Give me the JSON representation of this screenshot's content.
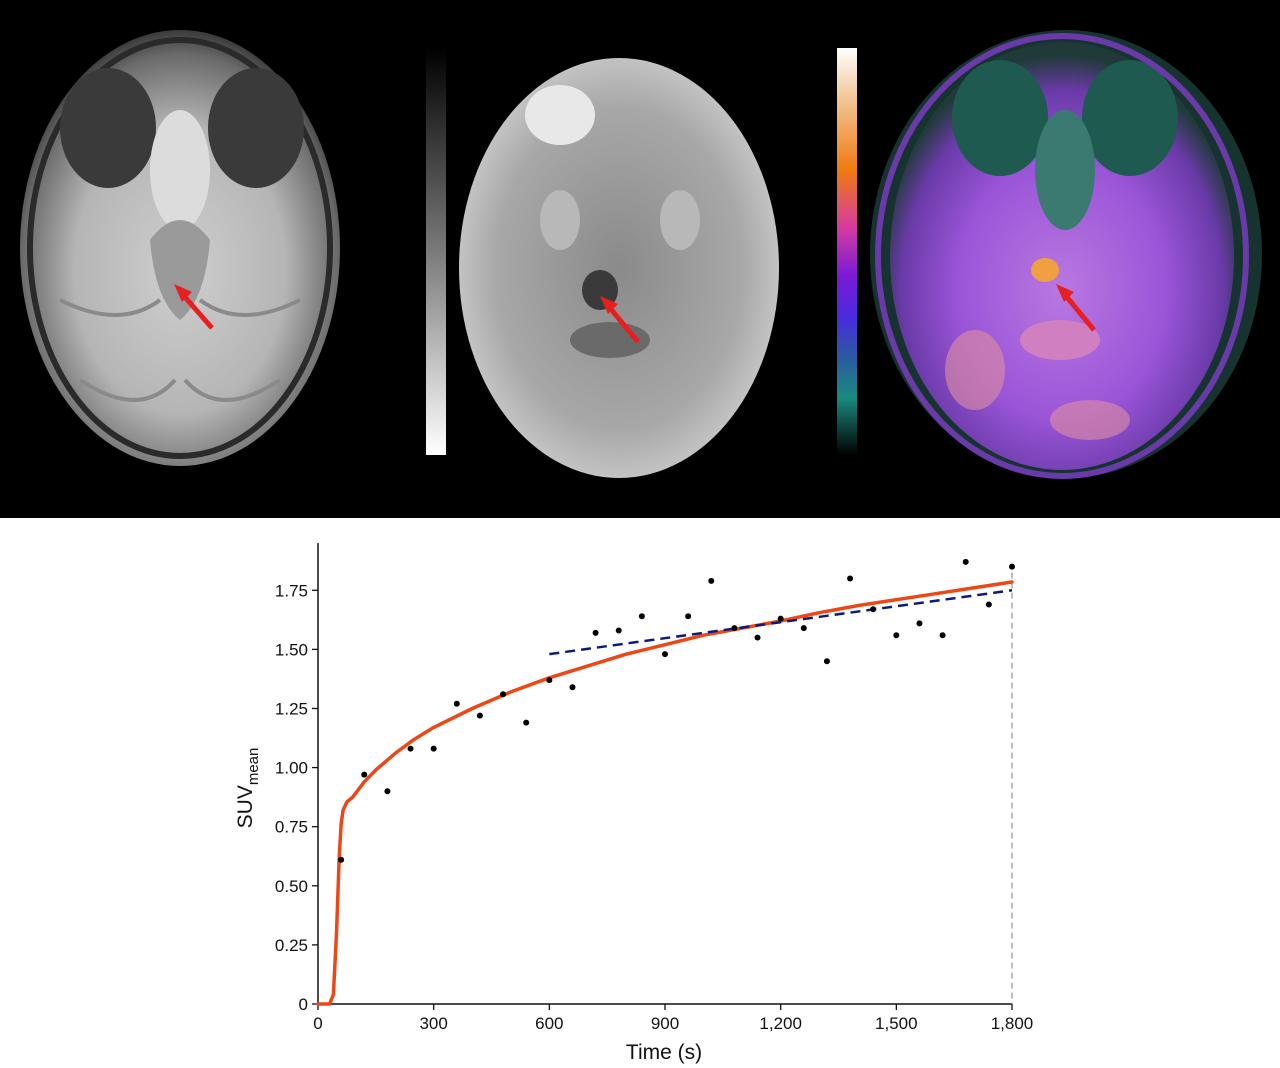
{
  "colors": {
    "curve": "#ee4716",
    "linear_fit": "#0d1a7a",
    "points": "#000000",
    "arrow": "#e62020",
    "refline": "#9a9a9a"
  },
  "images": [
    {
      "kind": "grayscale-mri",
      "icon": "brain-mri-scan"
    },
    {
      "kind": "grayscale-pet",
      "icon": "brain-pet-scan"
    },
    {
      "kind": "fused-pet-mri",
      "icon": "brain-fusion-scan"
    }
  ],
  "colorbars": [
    {
      "name": "grayscale",
      "stops": [
        "#ffffff",
        "#7a7a7a",
        "#000000"
      ]
    },
    {
      "name": "pet-lut",
      "stops": [
        "#ffffff",
        "#f3b07a",
        "#f07a10",
        "#d83aa0",
        "#7a1ad6",
        "#4a2ae0",
        "#2a5aa0",
        "#1a8a80",
        "#000000"
      ]
    }
  ],
  "chart_data": {
    "type": "scatter",
    "xlabel": "Time (s)",
    "ylabel_main": "SUV",
    "ylabel_sub": "mean",
    "xlim": [
      0,
      1800
    ],
    "ylim": [
      0,
      1.95
    ],
    "xticks": [
      0,
      300,
      600,
      900,
      1200,
      1500,
      1800
    ],
    "xtick_labels": [
      "0",
      "300",
      "600",
      "900",
      "1,200",
      "1,500",
      "1,800"
    ],
    "yticks": [
      0,
      0.25,
      0.5,
      0.75,
      1.0,
      1.25,
      1.5,
      1.75
    ],
    "ytick_labels": [
      "0",
      "0.25",
      "0.50",
      "0.75",
      "1.00",
      "1.25",
      "1.50",
      "1.75"
    ],
    "grid": false,
    "points": [
      {
        "x": 60,
        "y": 0.61
      },
      {
        "x": 120,
        "y": 0.97
      },
      {
        "x": 180,
        "y": 0.9
      },
      {
        "x": 240,
        "y": 1.08
      },
      {
        "x": 300,
        "y": 1.08
      },
      {
        "x": 360,
        "y": 1.27
      },
      {
        "x": 420,
        "y": 1.22
      },
      {
        "x": 480,
        "y": 1.31
      },
      {
        "x": 540,
        "y": 1.19
      },
      {
        "x": 600,
        "y": 1.37
      },
      {
        "x": 660,
        "y": 1.34
      },
      {
        "x": 720,
        "y": 1.57
      },
      {
        "x": 780,
        "y": 1.58
      },
      {
        "x": 840,
        "y": 1.64
      },
      {
        "x": 900,
        "y": 1.48
      },
      {
        "x": 960,
        "y": 1.64
      },
      {
        "x": 1020,
        "y": 1.79
      },
      {
        "x": 1080,
        "y": 1.59
      },
      {
        "x": 1140,
        "y": 1.55
      },
      {
        "x": 1200,
        "y": 1.63
      },
      {
        "x": 1260,
        "y": 1.59
      },
      {
        "x": 1320,
        "y": 1.45
      },
      {
        "x": 1380,
        "y": 1.8
      },
      {
        "x": 1440,
        "y": 1.67
      },
      {
        "x": 1500,
        "y": 1.56
      },
      {
        "x": 1560,
        "y": 1.61
      },
      {
        "x": 1620,
        "y": 1.56
      },
      {
        "x": 1680,
        "y": 1.87
      },
      {
        "x": 1740,
        "y": 1.69
      },
      {
        "x": 1800,
        "y": 1.85
      }
    ],
    "fit_curve": {
      "style": "solid",
      "x": [
        0,
        30,
        40,
        48,
        55,
        60,
        65,
        75,
        90,
        120,
        150,
        200,
        250,
        300,
        400,
        500,
        600,
        700,
        800,
        900,
        1000,
        1100,
        1200,
        1300,
        1400,
        1500,
        1600,
        1700,
        1800
      ],
      "y": [
        0,
        0,
        0.04,
        0.3,
        0.62,
        0.76,
        0.82,
        0.855,
        0.875,
        0.94,
        0.99,
        1.06,
        1.12,
        1.17,
        1.25,
        1.32,
        1.38,
        1.43,
        1.48,
        1.52,
        1.56,
        1.59,
        1.62,
        1.655,
        1.685,
        1.71,
        1.735,
        1.76,
        1.785
      ]
    },
    "linear_fit": {
      "style": "dashed",
      "x": [
        600,
        1800
      ],
      "y": [
        1.48,
        1.75
      ]
    },
    "reference_line": {
      "x": 1800,
      "style": "dashed"
    }
  }
}
